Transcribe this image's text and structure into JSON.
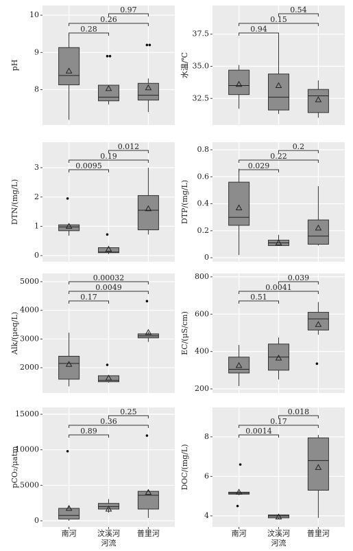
{
  "chart_data": [
    {
      "type": "box",
      "ylabel": "pH",
      "color": "#8c8c8c",
      "ylim": [
        7.05,
        10.26
      ],
      "yticks": [
        8,
        9,
        10
      ],
      "boxes": [
        {
          "min": 7.19,
          "q1": 8.13,
          "median": 8.38,
          "q3": 9.13,
          "max": 9.48,
          "mean": 8.5,
          "outliers": []
        },
        {
          "min": 7.6,
          "q1": 7.7,
          "median": 7.8,
          "q3": 8.12,
          "max": 8.12,
          "mean": 8.03,
          "outliers": [
            8.9,
            8.9
          ]
        },
        {
          "min": 7.4,
          "q1": 7.72,
          "median": 7.85,
          "q3": 8.17,
          "max": 8.3,
          "mean": 8.05,
          "outliers": [
            9.2,
            9.2
          ]
        }
      ],
      "brackets": [
        {
          "groups": [
            1,
            2
          ],
          "label": "0.97"
        },
        {
          "groups": [
            0,
            2
          ],
          "label": "0.26"
        },
        {
          "groups": [
            0,
            1
          ],
          "label": "0.28"
        }
      ]
    },
    {
      "type": "box",
      "ylabel": "水温/℃",
      "color": "#8c8c8c",
      "ylim": [
        30.43,
        39.73
      ],
      "yticks": [
        32.5,
        {
          "value": 35,
          "label": "35.0"
        },
        37.5
      ],
      "boxes": [
        {
          "min": 31.7,
          "q1": 32.8,
          "median": 33.5,
          "q3": 34.7,
          "max": 35.1,
          "mean": 33.6,
          "outliers": []
        },
        {
          "min": 31.3,
          "q1": 31.6,
          "median": 32.6,
          "q3": 34.4,
          "max": 37.4,
          "mean": 33.5,
          "outliers": []
        },
        {
          "min": 31.0,
          "q1": 31.4,
          "median": 32.7,
          "q3": 33.2,
          "max": 33.9,
          "mean": 32.4,
          "outliers": []
        }
      ],
      "brackets": [
        {
          "groups": [
            1,
            2
          ],
          "label": "0.54"
        },
        {
          "groups": [
            0,
            2
          ],
          "label": "0.15"
        },
        {
          "groups": [
            0,
            1
          ],
          "label": "0.94"
        }
      ]
    },
    {
      "type": "box",
      "ylabel": "DTN/(mg/L)",
      "color": "#8c8c8c",
      "ylim": [
        -0.21,
        3.87
      ],
      "yticks": [
        0,
        1,
        2,
        3
      ],
      "boxes": [
        {
          "min": 0.68,
          "q1": 0.85,
          "median": 0.98,
          "q3": 1.05,
          "max": 1.05,
          "mean": 1.0,
          "outliers": [
            1.95
          ]
        },
        {
          "min": 0.05,
          "q1": 0.1,
          "median": 0.12,
          "q3": 0.27,
          "max": 0.27,
          "mean": 0.22,
          "outliers": [
            0.72
          ]
        },
        {
          "min": 0.72,
          "q1": 0.88,
          "median": 1.55,
          "q3": 2.05,
          "max": 3.0,
          "mean": 1.6,
          "outliers": []
        }
      ],
      "brackets": [
        {
          "groups": [
            1,
            2
          ],
          "label": "0.012"
        },
        {
          "groups": [
            0,
            2
          ],
          "label": "0.19"
        },
        {
          "groups": [
            0,
            1
          ],
          "label": "0.0095"
        }
      ]
    },
    {
      "type": "box",
      "ylabel": "DTP/(mg/L)",
      "color": "#8c8c8c",
      "ylim": [
        -0.03,
        0.856
      ],
      "yticks": [
        0,
        0.2,
        0.4,
        0.6,
        0.8
      ],
      "boxes": [
        {
          "min": 0.02,
          "q1": 0.24,
          "median": 0.3,
          "q3": 0.56,
          "max": 0.66,
          "mean": 0.37,
          "outliers": []
        },
        {
          "min": 0.09,
          "q1": 0.09,
          "median": 0.11,
          "q3": 0.13,
          "max": 0.17,
          "mean": 0.11,
          "outliers": []
        },
        {
          "min": 0.09,
          "q1": 0.1,
          "median": 0.16,
          "q3": 0.28,
          "max": 0.53,
          "mean": 0.22,
          "outliers": []
        }
      ],
      "brackets": [
        {
          "groups": [
            1,
            2
          ],
          "label": "0.2"
        },
        {
          "groups": [
            0,
            2
          ],
          "label": "0.22"
        },
        {
          "groups": [
            0,
            1
          ],
          "label": "0.029"
        }
      ]
    },
    {
      "type": "box",
      "ylabel": "Alk/(μeq/L)",
      "color": "#8c8c8c",
      "ylim": [
        1119,
        5286
      ],
      "yticks": [
        2000,
        3000,
        4000,
        5000
      ],
      "boxes": [
        {
          "min": 1350,
          "q1": 1600,
          "median": 2150,
          "q3": 2400,
          "max": 3220,
          "mean": 2120,
          "outliers": []
        },
        {
          "min": 1480,
          "q1": 1510,
          "median": 1560,
          "q3": 1720,
          "max": 1720,
          "mean": 1640,
          "outliers": [
            2100
          ]
        },
        {
          "min": 2900,
          "q1": 3040,
          "median": 3110,
          "q3": 3180,
          "max": 3250,
          "mean": 3230,
          "outliers": [
            4320
          ]
        }
      ],
      "brackets": [
        {
          "groups": [
            0,
            2
          ],
          "label": "0.00032"
        },
        {
          "groups": [
            0,
            2
          ],
          "label": "0.0049"
        },
        {
          "groups": [
            0,
            1
          ],
          "label": "0.17"
        }
      ]
    },
    {
      "type": "box",
      "ylabel": "EC/(μS/cm)",
      "color": "#8c8c8c",
      "ylim": [
        178,
        818
      ],
      "yticks": [
        200,
        400,
        600,
        800
      ],
      "boxes": [
        {
          "min": 215,
          "q1": 285,
          "median": 305,
          "q3": 370,
          "max": 435,
          "mean": 325,
          "outliers": []
        },
        {
          "min": 250,
          "q1": 300,
          "median": 370,
          "q3": 440,
          "max": 475,
          "mean": 365,
          "outliers": []
        },
        {
          "min": 490,
          "q1": 515,
          "median": 575,
          "q3": 610,
          "max": 665,
          "mean": 545,
          "outliers": [
            335
          ]
        }
      ],
      "brackets": [
        {
          "groups": [
            1,
            2
          ],
          "label": "0.039"
        },
        {
          "groups": [
            0,
            2
          ],
          "label": "0.0041"
        },
        {
          "groups": [
            0,
            1
          ],
          "label": "0.51"
        }
      ]
    },
    {
      "type": "box",
      "ylabel": "pCO₂/μatm",
      "color": "#8c8c8c",
      "ylim": [
        -870,
        15970
      ],
      "yticks": [
        0,
        5000,
        10000,
        15000
      ],
      "categories": [
        "南河",
        "汶溪河",
        "普里河"
      ],
      "xlabel": "河流",
      "boxes": [
        {
          "min": 0,
          "q1": 250,
          "median": 750,
          "q3": 1750,
          "max": 2100,
          "mean": 1750,
          "outliers": [
            9800
          ]
        },
        {
          "min": 1150,
          "q1": 1650,
          "median": 2000,
          "q3": 2450,
          "max": 3050,
          "mean": 1650,
          "outliers": []
        },
        {
          "min": 400,
          "q1": 1650,
          "median": 3600,
          "q3": 4150,
          "max": 4350,
          "mean": 4000,
          "outliers": [
            12000
          ]
        }
      ],
      "brackets": [
        {
          "groups": [
            1,
            2
          ],
          "label": "0.25"
        },
        {
          "groups": [
            0,
            2
          ],
          "label": "0.36"
        },
        {
          "groups": [
            0,
            1
          ],
          "label": "0.89"
        }
      ]
    },
    {
      "type": "box",
      "ylabel": "DOC/(mg/L)",
      "color": "#8c8c8c",
      "ylim": [
        3.44,
        9.49
      ],
      "yticks": [
        4,
        6,
        8
      ],
      "categories": [
        "南河",
        "汶溪河",
        "普里河"
      ],
      "xlabel": "河流",
      "boxes": [
        {
          "min": 5.05,
          "q1": 5.1,
          "median": 5.15,
          "q3": 5.2,
          "max": 5.25,
          "mean": 5.2,
          "outliers": [
            4.5,
            6.6
          ]
        },
        {
          "min": 3.85,
          "q1": 3.9,
          "median": 4.0,
          "q3": 4.05,
          "max": 4.1,
          "mean": 3.95,
          "outliers": []
        },
        {
          "min": 3.9,
          "q1": 5.3,
          "median": 6.8,
          "q3": 7.95,
          "max": 8.1,
          "mean": 6.45,
          "outliers": []
        }
      ],
      "brackets": [
        {
          "groups": [
            1,
            2
          ],
          "label": "0.018"
        },
        {
          "groups": [
            0,
            2
          ],
          "label": "0.17"
        },
        {
          "groups": [
            0,
            1
          ],
          "label": "0.0014"
        }
      ]
    }
  ]
}
